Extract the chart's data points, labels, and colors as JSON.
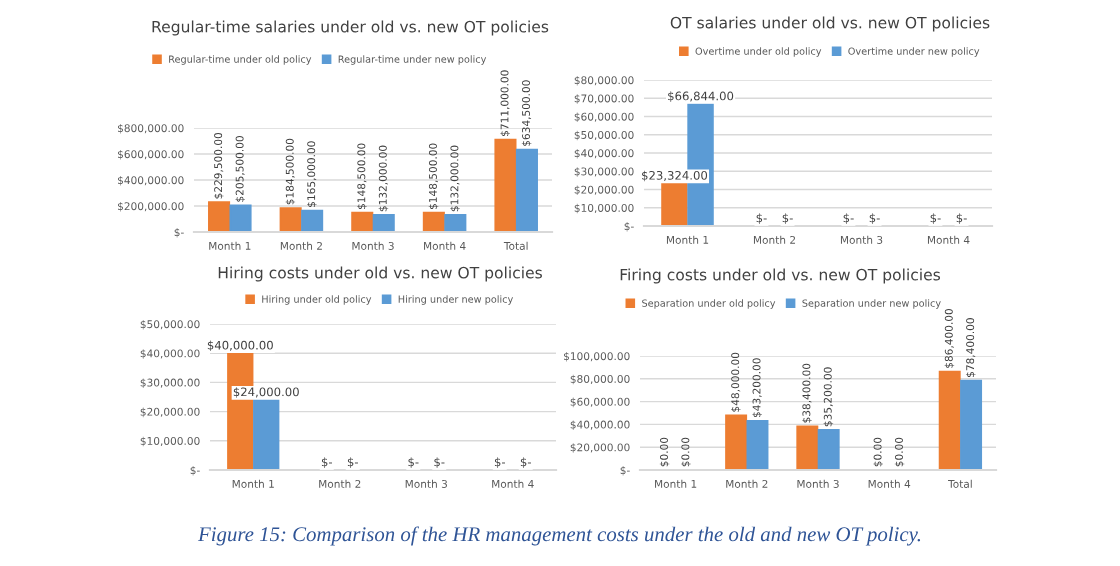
{
  "chart_data": [
    {
      "type": "bar",
      "title": "Regular-time salaries under old vs. new OT policies",
      "categories": [
        "Month 1",
        "Month 2",
        "Month 3",
        "Month 4",
        "Total"
      ],
      "series": [
        {
          "name": "Regular-time under old policy",
          "color": "#ed7d31",
          "values": [
            229500,
            184500,
            148500,
            148500,
            711000
          ],
          "value_labels": [
            "$229,500.00",
            "$184,500.00",
            "$148,500.00",
            "$148,500.00",
            "$711,000.00"
          ]
        },
        {
          "name": "Regular-time under new policy",
          "color": "#5b9bd5",
          "values": [
            205500,
            165000,
            132000,
            132000,
            634500
          ],
          "value_labels": [
            "$205,500.00",
            "$165,000.00",
            "$132,000.00",
            "$132,000.00",
            "$634,500.00"
          ]
        }
      ],
      "ylim": [
        0,
        800000
      ],
      "yticks": [
        {
          "value": 0,
          "label": "$-"
        },
        {
          "value": 200000,
          "label": "$200,000.00"
        },
        {
          "value": 400000,
          "label": "$400,000.00"
        },
        {
          "value": 600000,
          "label": "$600,000.00"
        },
        {
          "value": 800000,
          "label": "$800,000.00"
        }
      ],
      "grid": "y",
      "legend": "top"
    },
    {
      "type": "bar",
      "title": "OT salaries under old vs. new OT policies",
      "categories": [
        "Month 1",
        "Month 2",
        "Month 3",
        "Month 4"
      ],
      "series": [
        {
          "name": "Overtime under old policy",
          "color": "#ed7d31",
          "values": [
            23324,
            0,
            0,
            0
          ],
          "value_labels": [
            "$23,324.00",
            "$-",
            "$-",
            "$-"
          ]
        },
        {
          "name": "Overtime under new policy",
          "color": "#5b9bd5",
          "values": [
            66844,
            0,
            0,
            0
          ],
          "value_labels": [
            "$66,844.00",
            "$-",
            "$-",
            "$-"
          ]
        }
      ],
      "ylim": [
        0,
        80000
      ],
      "yticks": [
        {
          "value": 0,
          "label": "$-"
        },
        {
          "value": 10000,
          "label": "$10,000.00"
        },
        {
          "value": 20000,
          "label": "$20,000.00"
        },
        {
          "value": 30000,
          "label": "$30,000.00"
        },
        {
          "value": 40000,
          "label": "$40,000.00"
        },
        {
          "value": 50000,
          "label": "$50,000.00"
        },
        {
          "value": 60000,
          "label": "$60,000.00"
        },
        {
          "value": 70000,
          "label": "$70,000.00"
        },
        {
          "value": 80000,
          "label": "$80,000.00"
        }
      ],
      "grid": "y",
      "legend": "top"
    },
    {
      "type": "bar",
      "title": "Hiring costs under old vs. new OT policies",
      "categories": [
        "Month 1",
        "Month 2",
        "Month 3",
        "Month 4"
      ],
      "series": [
        {
          "name": "Hiring under old policy",
          "color": "#ed7d31",
          "values": [
            40000,
            0,
            0,
            0
          ],
          "value_labels": [
            "$40,000.00",
            "$-",
            "$-",
            "$-"
          ]
        },
        {
          "name": "Hiring under new policy",
          "color": "#5b9bd5",
          "values": [
            24000,
            0,
            0,
            0
          ],
          "value_labels": [
            "$24,000.00",
            "$-",
            "$-",
            "$-"
          ]
        }
      ],
      "ylim": [
        0,
        50000
      ],
      "yticks": [
        {
          "value": 0,
          "label": "$-"
        },
        {
          "value": 10000,
          "label": "$10,000.00"
        },
        {
          "value": 20000,
          "label": "$20,000.00"
        },
        {
          "value": 30000,
          "label": "$30,000.00"
        },
        {
          "value": 40000,
          "label": "$40,000.00"
        },
        {
          "value": 50000,
          "label": "$50,000.00"
        }
      ],
      "grid": "y",
      "legend": "top"
    },
    {
      "type": "bar",
      "title": "Firing costs under old vs. new OT policies",
      "categories": [
        "Month 1",
        "Month 2",
        "Month 3",
        "Month 4",
        "Total"
      ],
      "series": [
        {
          "name": "Separation under old policy",
          "color": "#ed7d31",
          "values": [
            0,
            48000,
            38400,
            0,
            86400
          ],
          "value_labels": [
            "$0.00",
            "$48,000.00",
            "$38,400.00",
            "$0.00",
            "$86,400.00"
          ]
        },
        {
          "name": "Separation under new policy",
          "color": "#5b9bd5",
          "values": [
            0,
            43200,
            35200,
            0,
            78400
          ],
          "value_labels": [
            "$0.00",
            "$43,200.00",
            "$35,200.00",
            "$0.00",
            "$78,400.00"
          ]
        }
      ],
      "ylim": [
        0,
        100000
      ],
      "yticks": [
        {
          "value": 0,
          "label": "$-"
        },
        {
          "value": 20000,
          "label": "$20,000.00"
        },
        {
          "value": 40000,
          "label": "$40,000.00"
        },
        {
          "value": 60000,
          "label": "$60,000.00"
        },
        {
          "value": 80000,
          "label": "$80,000.00"
        },
        {
          "value": 100000,
          "label": "$100,000.00"
        }
      ],
      "grid": "y",
      "legend": "top",
      "annotations": [
        "Figure 15: Comparison of the HR management costs under the old and new OT policy."
      ]
    }
  ]
}
